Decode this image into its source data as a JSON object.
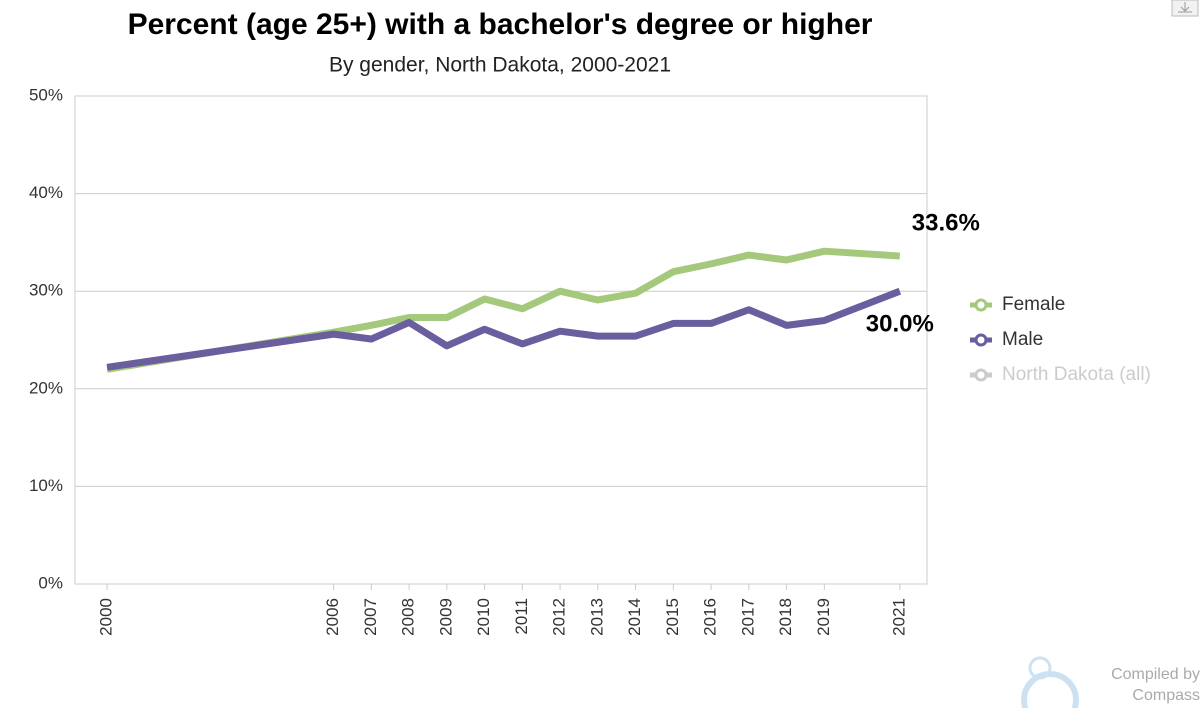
{
  "chart_data": {
    "type": "line",
    "title": "Percent (age 25+) with a bachelor's degree or higher",
    "subtitle": "By gender, North Dakota, 2000-2021",
    "x": [
      2000,
      2006,
      2007,
      2008,
      2009,
      2010,
      2011,
      2012,
      2013,
      2014,
      2015,
      2016,
      2017,
      2018,
      2019,
      2021
    ],
    "series": [
      {
        "name": "Female",
        "color": "#a5c97c",
        "visible": true,
        "values": [
          22.0,
          25.8,
          26.5,
          27.3,
          27.3,
          29.2,
          28.2,
          30.0,
          29.1,
          29.8,
          32.0,
          32.8,
          33.7,
          33.2,
          34.1,
          33.6
        ],
        "value_labels": [
          null,
          null,
          null,
          null,
          null,
          null,
          null,
          null,
          null,
          null,
          null,
          null,
          null,
          null,
          null,
          "33.6%"
        ]
      },
      {
        "name": "Male",
        "color": "#6a5e9e",
        "visible": true,
        "values": [
          22.2,
          25.6,
          25.1,
          26.8,
          24.4,
          26.1,
          24.6,
          25.9,
          25.4,
          25.4,
          26.7,
          26.7,
          28.1,
          26.5,
          27.0,
          30.0
        ],
        "value_labels": [
          null,
          null,
          null,
          null,
          null,
          null,
          null,
          null,
          null,
          null,
          null,
          null,
          null,
          null,
          null,
          "30.0%"
        ]
      },
      {
        "name": "North Dakota (all)",
        "color": "#cccccc",
        "visible": false
      }
    ],
    "xlim": [
      1999.15,
      2021.72
    ],
    "xticks": [
      2000,
      2006,
      2007,
      2008,
      2009,
      2010,
      2011,
      2012,
      2013,
      2014,
      2015,
      2016,
      2017,
      2018,
      2019,
      2021
    ],
    "ylim": [
      0,
      50
    ],
    "yticks": [
      {
        "value": 0,
        "label": "0%"
      },
      {
        "value": 10,
        "label": "10%"
      },
      {
        "value": 20,
        "label": "20%"
      },
      {
        "value": 30,
        "label": "30%"
      },
      {
        "value": 40,
        "label": "40%"
      },
      {
        "value": 50,
        "label": "50%"
      }
    ],
    "grid": true,
    "legend": "right",
    "credit": [
      "Compiled by",
      "Compass"
    ]
  }
}
